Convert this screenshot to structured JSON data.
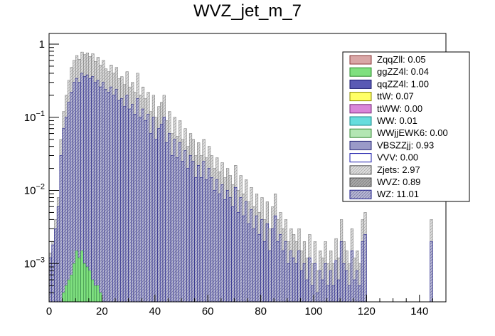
{
  "chart_data": {
    "type": "bar",
    "title": "WVZ_jet_m_7",
    "xlabel": "",
    "ylabel": "",
    "xlim": [
      0,
      150
    ],
    "ylim": [
      0.0003,
      1.4
    ],
    "y_scale": "log",
    "x_ticks": [
      0,
      20,
      40,
      60,
      80,
      100,
      120,
      140
    ],
    "x_tick_labels": [
      "0",
      "20",
      "40",
      "60",
      "80",
      "100",
      "120",
      "140"
    ],
    "y_ticks": [
      0.001,
      0.01,
      0.1,
      1
    ],
    "y_tick_labels": [
      {
        "base": "10",
        "exp": "−3"
      },
      {
        "base": "10",
        "exp": "−2"
      },
      {
        "base": "10",
        "exp": "−1"
      },
      {
        "base": "1",
        "exp": ""
      }
    ],
    "legend_position": "top-right",
    "bin_width": 1,
    "series": [
      {
        "name": "ZqqZll: 0.05",
        "color": "#d9a6a6",
        "edge": "#8b3a3a"
      },
      {
        "name": "ggZZ4l: 0.04",
        "color": "#7fe07f",
        "edge": "#2e8b2e"
      },
      {
        "name": "qqZZ4l: 1.00",
        "color": "#5a5ab4",
        "edge": "#1a1a6e"
      },
      {
        "name": "ttW: 0.07",
        "color": "#ffff66",
        "edge": "#8b8b00"
      },
      {
        "name": "ttWW: 0.00",
        "color": "#d986d9",
        "edge": "#7a2a7a"
      },
      {
        "name": "WW: 0.01",
        "color": "#66dddd",
        "edge": "#1a8b8b"
      },
      {
        "name": "WWjjEWK6: 0.00",
        "color": "#b3e6b3",
        "edge": "#3a8b3a"
      },
      {
        "name": "VBSZZjj: 0.93",
        "color": "#9a9ac8",
        "edge": "#2a2a7a"
      },
      {
        "name": "VVV: 0.00",
        "color": "#ffffff",
        "edge": "#1a1aaa"
      },
      {
        "name": "Zjets: 2.97",
        "color": "#dcdcdc",
        "edge": "#555555"
      },
      {
        "name": "WVZ: 0.89",
        "color": "#a8a8a8",
        "edge": "#444444"
      },
      {
        "name": "WZ: 11.01",
        "color": "#b8b8d4",
        "edge": "#1a1a88"
      }
    ],
    "stack_total": [
      0.0014,
      0.002,
      0.004,
      0.008,
      0.05,
      0.12,
      0.2,
      0.32,
      0.48,
      0.6,
      0.7,
      0.62,
      0.78,
      0.72,
      0.76,
      0.68,
      0.74,
      0.58,
      0.66,
      0.52,
      0.6,
      0.46,
      0.42,
      0.52,
      0.4,
      0.48,
      0.34,
      0.36,
      0.28,
      0.42,
      0.26,
      0.3,
      0.22,
      0.4,
      0.2,
      0.26,
      0.18,
      0.22,
      0.12,
      0.2,
      0.1,
      0.14,
      0.16,
      0.2,
      0.09,
      0.12,
      0.06,
      0.1,
      0.055,
      0.09,
      0.05,
      0.07,
      0.04,
      0.06,
      0.05,
      0.03,
      0.045,
      0.03,
      0.05,
      0.028,
      0.04,
      0.03,
      0.02,
      0.028,
      0.018,
      0.024,
      0.015,
      0.02,
      0.016,
      0.012,
      0.022,
      0.01,
      0.016,
      0.009,
      0.014,
      0.007,
      0.011,
      0.006,
      0.009,
      0.005,
      0.008,
      0.004,
      0.007,
      0.003,
      0.006,
      0.009,
      0.004,
      0.005,
      0.003,
      0.004,
      0.002,
      0.003,
      0.0025,
      0.002,
      0.003,
      0.0015,
      0.002,
      0.0012,
      0.0025,
      0.001,
      0.002,
      0.0008,
      0.0015,
      0.0012,
      0.002,
      0.001,
      0.0015,
      0.001,
      0.0022,
      0.0012,
      0.004,
      0.002,
      0.0015,
      0.001,
      0.003,
      0.0012,
      0.0015,
      0.001,
      0.004,
      0.005,
      0.0003,
      0.0003,
      0.0003,
      0.0003,
      0.0003,
      0.0003,
      0.0003,
      0.0003,
      0.0003,
      0.0003,
      0.0003,
      0.0003,
      0.0003,
      0.0003,
      0.0003,
      0.0003,
      0.0003,
      0.0003,
      0.0003,
      0.0003,
      0.0003,
      0.0003,
      0.0003,
      0.0003,
      0.004,
      0.0003,
      0.0003,
      0.0003,
      0.0003,
      0.0003
    ],
    "wz_component": [
      0.0012,
      0.0018,
      0.003,
      0.006,
      0.03,
      0.07,
      0.1,
      0.16,
      0.22,
      0.3,
      0.34,
      0.3,
      0.4,
      0.36,
      0.38,
      0.34,
      0.36,
      0.3,
      0.32,
      0.26,
      0.3,
      0.24,
      0.22,
      0.26,
      0.2,
      0.24,
      0.17,
      0.18,
      0.14,
      0.2,
      0.13,
      0.15,
      0.11,
      0.18,
      0.1,
      0.13,
      0.09,
      0.11,
      0.06,
      0.1,
      0.05,
      0.07,
      0.08,
      0.1,
      0.045,
      0.06,
      0.03,
      0.05,
      0.028,
      0.045,
      0.025,
      0.035,
      0.02,
      0.03,
      0.025,
      0.015,
      0.022,
      0.015,
      0.025,
      0.014,
      0.02,
      0.015,
      0.01,
      0.014,
      0.009,
      0.012,
      0.0075,
      0.01,
      0.008,
      0.006,
      0.011,
      0.005,
      0.008,
      0.0045,
      0.007,
      0.0035,
      0.0055,
      0.003,
      0.0045,
      0.0025,
      0.004,
      0.002,
      0.0035,
      0.0015,
      0.003,
      0.0045,
      0.002,
      0.0025,
      0.0015,
      0.002,
      0.001,
      0.0015,
      0.0012,
      0.001,
      0.0015,
      0.0008,
      0.001,
      0.0006,
      0.0012,
      0.0005,
      0.001,
      0.0004,
      0.0008,
      0.0006,
      0.001,
      0.0005,
      0.0008,
      0.0005,
      0.0011,
      0.0006,
      0.002,
      0.001,
      0.0008,
      0.0005,
      0.0015,
      0.0006,
      0.0008,
      0.0005,
      0.002,
      0.0025,
      0.0003,
      0.0003,
      0.0003,
      0.0003,
      0.0003,
      0.0003,
      0.0003,
      0.0003,
      0.0003,
      0.0003,
      0.0003,
      0.0003,
      0.0003,
      0.0003,
      0.0003,
      0.0003,
      0.0003,
      0.0003,
      0.0003,
      0.0003,
      0.0003,
      0.0003,
      0.0003,
      0.0003,
      0.002,
      0.0003,
      0.0003,
      0.0003,
      0.0003,
      0.0003
    ],
    "ggzz_component": [
      0.0,
      0.0,
      0.0,
      0.0,
      0.0003,
      0.0004,
      0.0005,
      0.0006,
      0.0007,
      0.001,
      0.0015,
      0.0012,
      0.0015,
      0.001,
      0.0009,
      0.0008,
      0.0006,
      0.0005,
      0.0005,
      0.0004
    ]
  }
}
